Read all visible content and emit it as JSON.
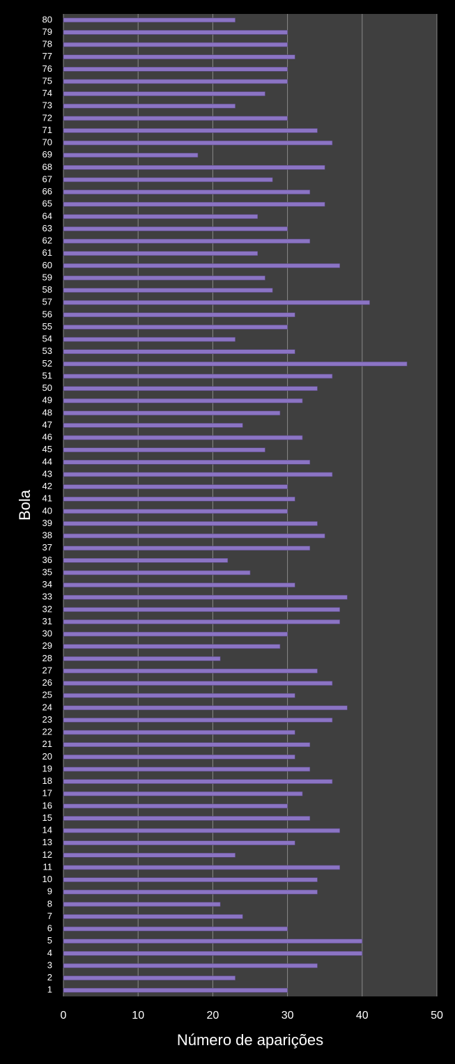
{
  "chart_data": {
    "type": "barh",
    "xlabel": "Número de aparições",
    "ylabel": "Bola",
    "categories": [
      "1",
      "2",
      "3",
      "4",
      "5",
      "6",
      "7",
      "8",
      "9",
      "10",
      "11",
      "12",
      "13",
      "14",
      "15",
      "16",
      "17",
      "18",
      "19",
      "20",
      "21",
      "22",
      "23",
      "24",
      "25",
      "26",
      "27",
      "28",
      "29",
      "30",
      "31",
      "32",
      "33",
      "34",
      "35",
      "36",
      "37",
      "38",
      "39",
      "40",
      "41",
      "42",
      "43",
      "44",
      "45",
      "46",
      "47",
      "48",
      "49",
      "50",
      "51",
      "52",
      "53",
      "54",
      "55",
      "56",
      "57",
      "58",
      "59",
      "60",
      "61",
      "62",
      "63",
      "64",
      "65",
      "66",
      "67",
      "68",
      "69",
      "70",
      "71",
      "72",
      "73",
      "74",
      "75",
      "76",
      "77",
      "78",
      "79",
      "80"
    ],
    "values": [
      30,
      23,
      34,
      40,
      40,
      30,
      24,
      21,
      34,
      34,
      37,
      23,
      31,
      37,
      33,
      30,
      32,
      36,
      33,
      31,
      33,
      31,
      36,
      38,
      31,
      36,
      34,
      21,
      29,
      30,
      37,
      37,
      38,
      31,
      25,
      22,
      33,
      35,
      34,
      30,
      31,
      30,
      36,
      33,
      27,
      32,
      24,
      29,
      32,
      34,
      36,
      46,
      31,
      23,
      30,
      31,
      41,
      28,
      27,
      37,
      26,
      33,
      30,
      26,
      35,
      33,
      28,
      35,
      18,
      36,
      34,
      30,
      23,
      27,
      30,
      30,
      31,
      30,
      30,
      23
    ],
    "color": "#8b74c4",
    "xlim": [
      0,
      50
    ],
    "xticks": [
      0,
      10,
      20,
      30,
      40,
      50
    ],
    "grid": true
  }
}
